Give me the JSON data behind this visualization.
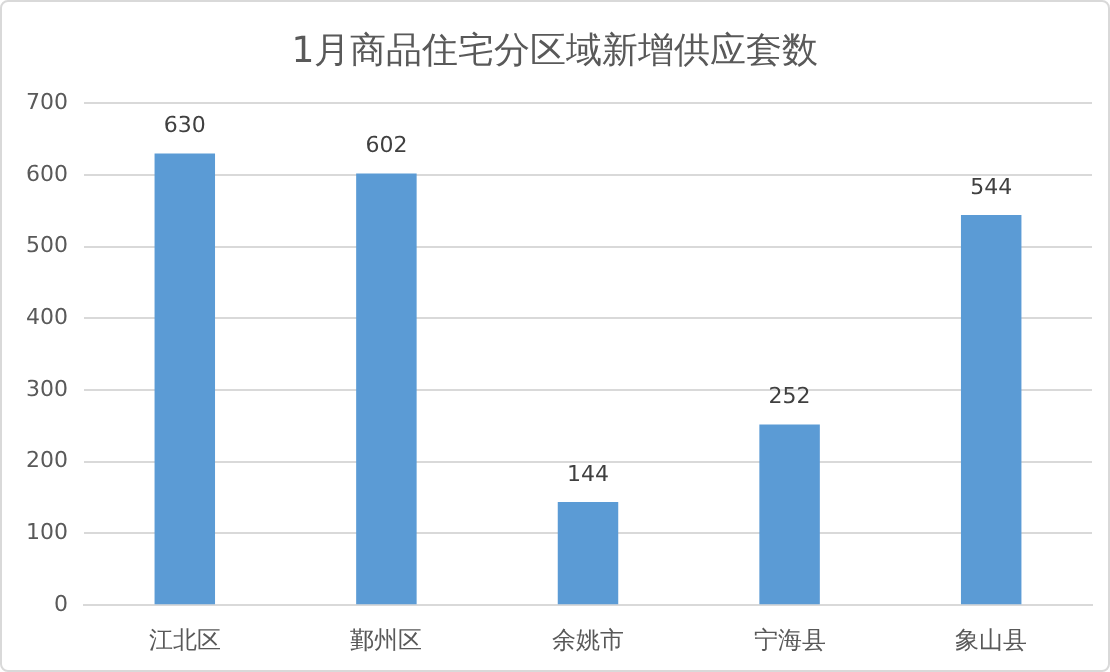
{
  "chart_data": {
    "type": "bar",
    "title": "1月商品住宅分区域新增供应套数",
    "categories": [
      "江北区",
      "鄞州区",
      "余姚市",
      "宁海县",
      "象山县"
    ],
    "values": [
      630,
      602,
      144,
      252,
      544
    ],
    "color": "#5b9bd5",
    "ylim": [
      0,
      700
    ],
    "yticks": [
      0,
      100,
      200,
      300,
      400,
      500,
      600,
      700
    ],
    "grid": "y",
    "data_labels": true,
    "legend": false
  }
}
